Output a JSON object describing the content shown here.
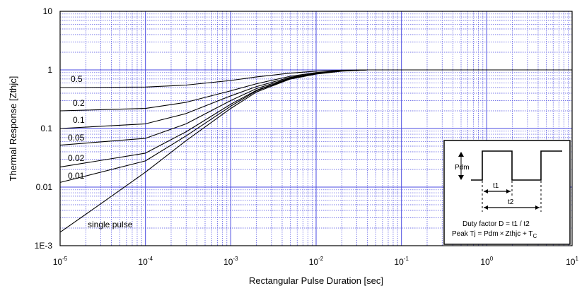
{
  "chart_data": {
    "type": "line",
    "x_scale": "log",
    "y_scale": "log",
    "xlim": [
      1e-05,
      10
    ],
    "ylim": [
      0.001,
      10
    ],
    "xlabel": "Rectangular Pulse Duration [sec]",
    "ylabel": "Thermal Response [Zthjc]",
    "grid": true,
    "colors": {
      "grid": "#4a4ae0",
      "frame": "#000000",
      "curve": "#000000"
    },
    "x_ticks": [
      {
        "value": 1e-05,
        "base": "10",
        "exp": "-5"
      },
      {
        "value": 0.0001,
        "base": "10",
        "exp": "-4"
      },
      {
        "value": 0.001,
        "base": "10",
        "exp": "-3"
      },
      {
        "value": 0.01,
        "base": "10",
        "exp": "-2"
      },
      {
        "value": 0.1,
        "base": "10",
        "exp": "-1"
      },
      {
        "value": 1,
        "base": "10",
        "exp": "0"
      },
      {
        "value": 10,
        "base": "10",
        "exp": "1"
      }
    ],
    "y_ticks": [
      {
        "value": 10,
        "label": "10"
      },
      {
        "value": 1,
        "label": "1"
      },
      {
        "value": 0.1,
        "label": "0.1"
      },
      {
        "value": 0.01,
        "label": "0.01"
      },
      {
        "value": 0.001,
        "label": "1E-3"
      }
    ],
    "series": [
      {
        "name": "0.5",
        "x": [
          1e-05,
          0.0001,
          0.0003,
          0.001,
          0.002,
          0.005,
          0.01,
          0.02,
          0.04,
          10
        ],
        "y": [
          0.5,
          0.51,
          0.55,
          0.66,
          0.76,
          0.88,
          0.95,
          0.99,
          1.0,
          1.0
        ]
      },
      {
        "name": "0.2",
        "x": [
          1e-05,
          0.0001,
          0.0003,
          0.001,
          0.002,
          0.005,
          0.01,
          0.02,
          0.04,
          10
        ],
        "y": [
          0.2,
          0.22,
          0.28,
          0.44,
          0.58,
          0.78,
          0.9,
          0.97,
          1.0,
          1.0
        ]
      },
      {
        "name": "0.1",
        "x": [
          1e-05,
          0.0001,
          0.0003,
          0.001,
          0.002,
          0.005,
          0.01,
          0.02,
          0.04,
          10
        ],
        "y": [
          0.1,
          0.12,
          0.18,
          0.36,
          0.52,
          0.75,
          0.88,
          0.97,
          1.0,
          1.0
        ]
      },
      {
        "name": "0.05",
        "x": [
          1e-05,
          0.0001,
          0.0003,
          0.001,
          0.002,
          0.005,
          0.01,
          0.02,
          0.04,
          10
        ],
        "y": [
          0.052,
          0.068,
          0.12,
          0.3,
          0.48,
          0.73,
          0.87,
          0.96,
          1.0,
          1.0
        ]
      },
      {
        "name": "0.02",
        "x": [
          1e-05,
          0.0001,
          0.0003,
          0.001,
          0.002,
          0.005,
          0.01,
          0.02,
          0.04,
          10
        ],
        "y": [
          0.022,
          0.038,
          0.088,
          0.26,
          0.45,
          0.72,
          0.86,
          0.96,
          1.0,
          1.0
        ]
      },
      {
        "name": "0.01",
        "x": [
          1e-05,
          0.0001,
          0.0003,
          0.001,
          0.002,
          0.005,
          0.01,
          0.02,
          0.04,
          10
        ],
        "y": [
          0.012,
          0.028,
          0.075,
          0.24,
          0.44,
          0.71,
          0.86,
          0.96,
          1.0,
          1.0
        ]
      },
      {
        "name": "single pulse",
        "x": [
          1e-05,
          3e-05,
          0.0001,
          0.0003,
          0.001,
          0.002,
          0.005,
          0.01,
          0.02,
          0.04,
          10
        ],
        "y": [
          0.0017,
          0.0052,
          0.018,
          0.062,
          0.22,
          0.42,
          0.7,
          0.85,
          0.95,
          1.0,
          1.0
        ]
      }
    ],
    "inset": {
      "pdm_label": "Pdm",
      "t1_label": "t1",
      "t2_label": "t2",
      "duty_text": "Duty factor D = t1 / t2",
      "peak_text_prefix": "Peak Tj = Pdm",
      "peak_text_times": "×",
      "peak_text_mid": "Zthjc + T",
      "peak_text_sub": "C"
    }
  }
}
